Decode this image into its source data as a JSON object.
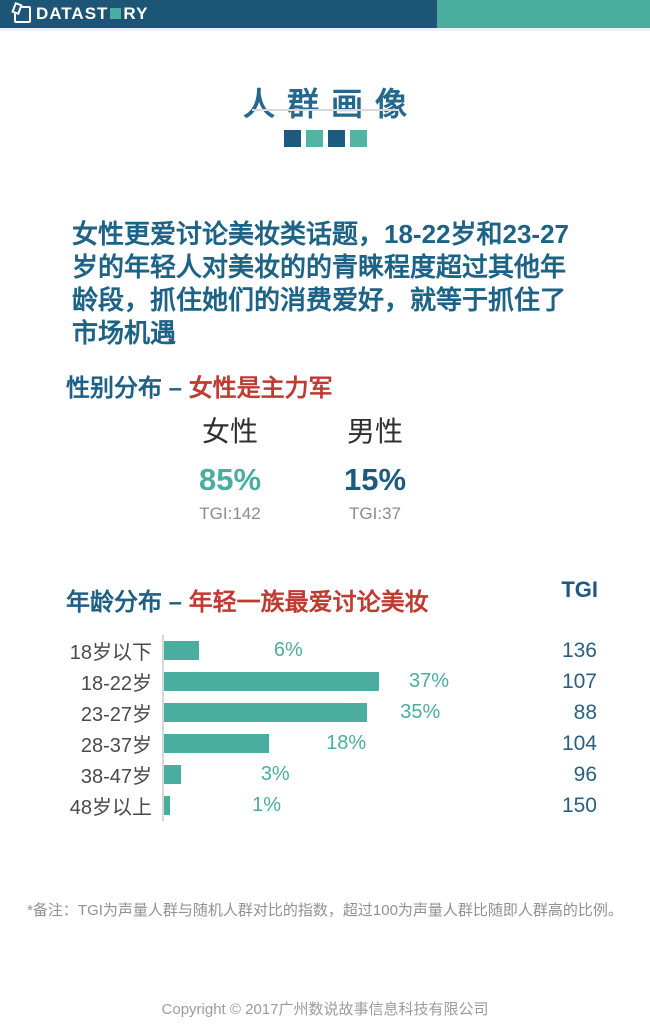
{
  "header": {
    "logo_prefix": "DATAST",
    "logo_suffix": "RY",
    "bar_color": "#1d5577",
    "accent_color": "#4bad9f"
  },
  "title": "人群画像",
  "decor_squares": [
    "#1d5a7d",
    "#55b3a4",
    "#1d5a7d",
    "#55b3a4"
  ],
  "intro": "女性更爱讨论美妆类话题，18-22岁和23-27岁的年轻人对美妆的的青睐程度超过其他年龄段，抓住她们的消费爱好，就等于抓住了市场机遇",
  "gender": {
    "heading_prefix": "性别分布 – ",
    "heading_highlight": "女性是主力军",
    "items": [
      {
        "label": "女性",
        "value": "85%",
        "tgi": "TGI:142",
        "color": "#4bad9f"
      },
      {
        "label": "男性",
        "value": "15%",
        "tgi": "TGI:37",
        "color": "#1d5a80"
      }
    ]
  },
  "age": {
    "heading_prefix": "年龄分布 – ",
    "heading_highlight": "年轻一族最爱讨论美妆",
    "tgi_header": "TGI"
  },
  "chart_data": {
    "type": "bar",
    "orientation": "horizontal",
    "title": "年龄分布",
    "categories": [
      "18岁以下",
      "18-22岁",
      "23-27岁",
      "28-37岁",
      "38-47岁",
      "48岁以上"
    ],
    "values": [
      6,
      37,
      35,
      18,
      3,
      1
    ],
    "value_labels": [
      "6%",
      "37%",
      "35%",
      "18%",
      "3%",
      "1%"
    ],
    "tgi_values": [
      136,
      107,
      88,
      104,
      96,
      150
    ],
    "bar_color": "#4bad9f",
    "xlim": [
      0,
      37
    ],
    "grid": false,
    "legend": false
  },
  "footnote": "*备注：TGI为声量人群与随机人群对比的指数，超过100为声量人群比随即人群高的比例。",
  "copyright": "Copyright © 2017广州数说故事信息科技有限公司"
}
